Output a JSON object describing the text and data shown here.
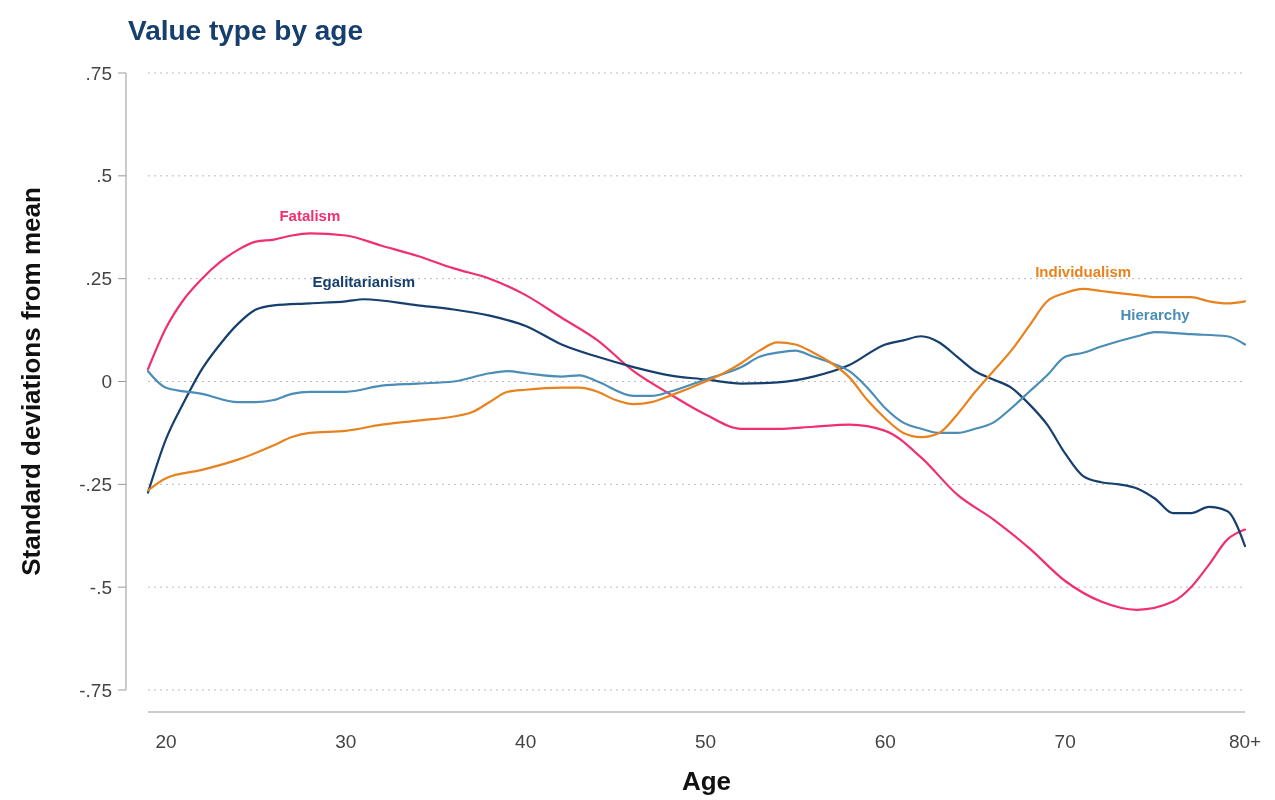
{
  "chart_data": {
    "type": "line",
    "title": "Value type by age",
    "xlabel": "Age",
    "ylabel": "Standard deviations from mean",
    "xlim": [
      19,
      80
    ],
    "xticks": [
      20,
      30,
      40,
      50,
      60,
      70,
      {
        "value": 80,
        "label": "80+"
      }
    ],
    "ylim": [
      -0.75,
      0.75
    ],
    "yticks": [
      {
        "value": -0.75,
        "label": "-.75"
      },
      {
        "value": -0.5,
        "label": "-.5"
      },
      {
        "value": -0.25,
        "label": "-.25"
      },
      0,
      {
        "value": 0.25,
        "label": ".25"
      },
      {
        "value": 0.5,
        "label": ".5"
      },
      {
        "value": 0.75,
        "label": ".75"
      }
    ],
    "grid": "y",
    "legend": false,
    "marker": "none",
    "line_style": "solid",
    "series": [
      {
        "name": "Fatalism",
        "color": "#f0306e",
        "x": [
          19,
          20,
          21,
          22,
          23,
          24,
          25,
          26,
          27,
          28,
          30,
          32,
          34,
          36,
          38,
          40,
          42,
          44,
          46,
          48,
          50,
          52,
          54,
          56,
          58,
          60,
          62,
          64,
          66,
          68,
          70,
          72,
          74,
          76,
          77,
          78,
          79,
          80
        ],
        "values": [
          0.03,
          0.13,
          0.2,
          0.25,
          0.29,
          0.32,
          0.34,
          0.345,
          0.355,
          0.36,
          0.355,
          0.33,
          0.305,
          0.275,
          0.25,
          0.21,
          0.155,
          0.1,
          0.025,
          -0.03,
          -0.08,
          -0.115,
          -0.115,
          -0.11,
          -0.105,
          -0.12,
          -0.185,
          -0.275,
          -0.335,
          -0.405,
          -0.485,
          -0.535,
          -0.555,
          -0.535,
          -0.5,
          -0.445,
          -0.385,
          -0.36
        ]
      },
      {
        "name": "Egalitarianism",
        "color": "#163f6e",
        "x": [
          19,
          20,
          21,
          22,
          23,
          24,
          25,
          26,
          28,
          30,
          31,
          34,
          36,
          38,
          40,
          42,
          44,
          46,
          48,
          50,
          52,
          54,
          56,
          58,
          60,
          61,
          62,
          63,
          64,
          65,
          66,
          67,
          68,
          69,
          70,
          71,
          72,
          73,
          74,
          75,
          76,
          77,
          78,
          79,
          80
        ],
        "values": [
          -0.27,
          -0.14,
          -0.05,
          0.03,
          0.09,
          0.14,
          0.175,
          0.185,
          0.19,
          0.195,
          0.2,
          0.185,
          0.175,
          0.16,
          0.135,
          0.09,
          0.06,
          0.035,
          0.015,
          0.005,
          -0.005,
          -0.002,
          0.012,
          0.04,
          0.09,
          0.1,
          0.11,
          0.095,
          0.06,
          0.025,
          0.005,
          -0.015,
          -0.055,
          -0.105,
          -0.175,
          -0.23,
          -0.245,
          -0.25,
          -0.26,
          -0.285,
          -0.32,
          -0.32,
          -0.305,
          -0.315,
          -0.4
        ]
      },
      {
        "name": "Hierarchy",
        "color": "#4a8db7",
        "x": [
          19,
          20,
          22,
          24,
          25,
          26,
          27,
          28,
          30,
          32,
          34,
          36,
          38,
          39,
          40,
          42,
          43,
          44,
          46,
          47,
          48,
          50,
          52,
          53,
          54,
          55,
          56,
          57,
          58,
          59,
          60,
          61,
          62,
          63,
          64,
          65,
          66,
          67,
          68,
          69,
          70,
          71,
          72,
          74,
          75,
          77,
          79,
          80
        ],
        "values": [
          0.025,
          -0.015,
          -0.03,
          -0.05,
          -0.05,
          -0.045,
          -0.03,
          -0.025,
          -0.025,
          -0.01,
          -0.005,
          0,
          0.02,
          0.025,
          0.02,
          0.012,
          0.015,
          0,
          -0.035,
          -0.035,
          -0.025,
          0.005,
          0.035,
          0.06,
          0.07,
          0.075,
          0.06,
          0.045,
          0.025,
          -0.015,
          -0.065,
          -0.1,
          -0.115,
          -0.125,
          -0.125,
          -0.115,
          -0.1,
          -0.065,
          -0.025,
          0.015,
          0.06,
          0.07,
          0.085,
          0.11,
          0.12,
          0.115,
          0.11,
          0.09
        ]
      },
      {
        "name": "Individualism",
        "color": "#e8821e",
        "x": [
          19,
          20,
          22,
          24,
          26,
          27,
          28,
          30,
          32,
          34,
          36,
          37,
          38,
          39,
          40,
          42,
          43,
          44,
          45,
          46,
          47,
          48,
          50,
          51,
          52,
          53,
          54,
          55,
          56,
          57,
          58,
          59,
          60,
          61,
          62,
          63,
          64,
          65,
          66,
          67,
          68,
          69,
          70,
          71,
          72,
          73,
          74,
          75,
          77,
          78,
          79,
          80
        ],
        "values": [
          -0.265,
          -0.235,
          -0.215,
          -0.19,
          -0.155,
          -0.135,
          -0.125,
          -0.12,
          -0.105,
          -0.095,
          -0.085,
          -0.075,
          -0.05,
          -0.025,
          -0.02,
          -0.015,
          -0.015,
          -0.025,
          -0.045,
          -0.055,
          -0.05,
          -0.035,
          0,
          0.02,
          0.045,
          0.075,
          0.095,
          0.09,
          0.07,
          0.045,
          0.01,
          -0.045,
          -0.09,
          -0.125,
          -0.135,
          -0.125,
          -0.08,
          -0.025,
          0.025,
          0.075,
          0.135,
          0.195,
          0.215,
          0.225,
          0.22,
          0.215,
          0.21,
          0.205,
          0.205,
          0.195,
          0.19,
          0.195
        ]
      }
    ]
  }
}
